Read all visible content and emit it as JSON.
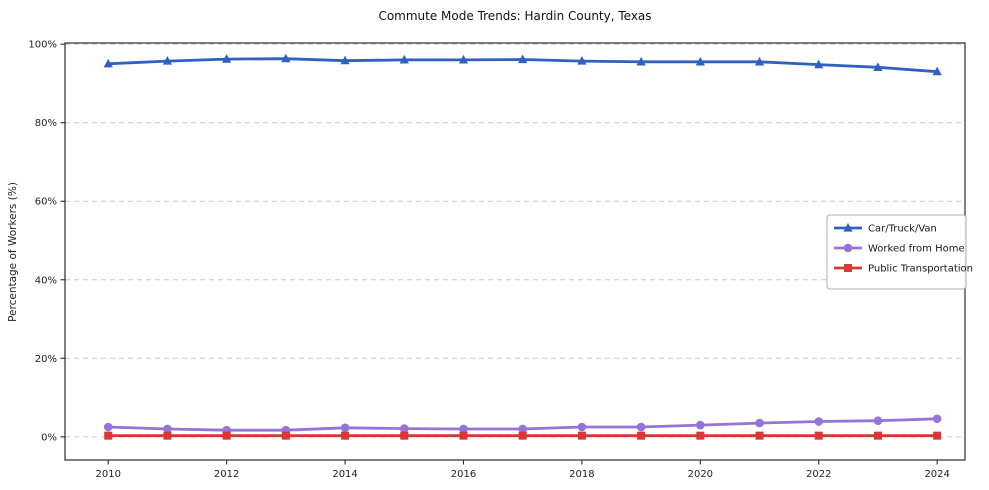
{
  "chart_data": {
    "type": "line",
    "title": "Commute Mode Trends: Hardin County, Texas",
    "xlabel": "",
    "ylabel": "Percentage of Workers (%)",
    "x": [
      2010,
      2011,
      2012,
      2013,
      2014,
      2015,
      2016,
      2017,
      2018,
      2019,
      2020,
      2021,
      2022,
      2023,
      2024
    ],
    "series": [
      {
        "name": "Car/Truck/Van",
        "color": "#3060c0",
        "marker": "triangle",
        "values": [
          95.0,
          95.7,
          96.2,
          96.3,
          95.8,
          96.0,
          96.0,
          96.1,
          95.7,
          95.5,
          95.5,
          95.5,
          94.8,
          94.1,
          93.0
        ]
      },
      {
        "name": "Worked from Home",
        "color": "#9673d6",
        "marker": "circle",
        "values": [
          2.5,
          2.0,
          1.7,
          1.7,
          2.3,
          2.1,
          2.0,
          2.0,
          2.5,
          2.5,
          3.0,
          3.5,
          3.9,
          4.1,
          4.6
        ]
      },
      {
        "name": "Public Transportation",
        "color": "#d93636",
        "marker": "square",
        "values": [
          0.3,
          0.3,
          0.3,
          0.3,
          0.3,
          0.3,
          0.3,
          0.3,
          0.3,
          0.3,
          0.3,
          0.3,
          0.3,
          0.3,
          0.3
        ]
      }
    ],
    "xticks": [
      {
        "value": 2010,
        "label": "2010"
      },
      {
        "value": 2012,
        "label": "2012"
      },
      {
        "value": 2014,
        "label": "2014"
      },
      {
        "value": 2016,
        "label": "2016"
      },
      {
        "value": 2018,
        "label": "2018"
      },
      {
        "value": 2020,
        "label": "2020"
      },
      {
        "value": 2022,
        "label": "2022"
      },
      {
        "value": 2024,
        "label": "2024"
      }
    ],
    "yticks": [
      {
        "value": 0,
        "label": "0%"
      },
      {
        "value": 20,
        "label": "20%"
      },
      {
        "value": 40,
        "label": "40%"
      },
      {
        "value": 60,
        "label": "60%"
      },
      {
        "value": 80,
        "label": "80%"
      },
      {
        "value": 100,
        "label": "100%"
      }
    ],
    "xlim": [
      2009.27,
      2024.47
    ],
    "ylim": [
      -5.9,
      100.3
    ],
    "grid": "horizontal dashed",
    "grid_color": "#c9c9c9",
    "axis_color": "#2b2b2b",
    "legend_position": "center-right"
  }
}
